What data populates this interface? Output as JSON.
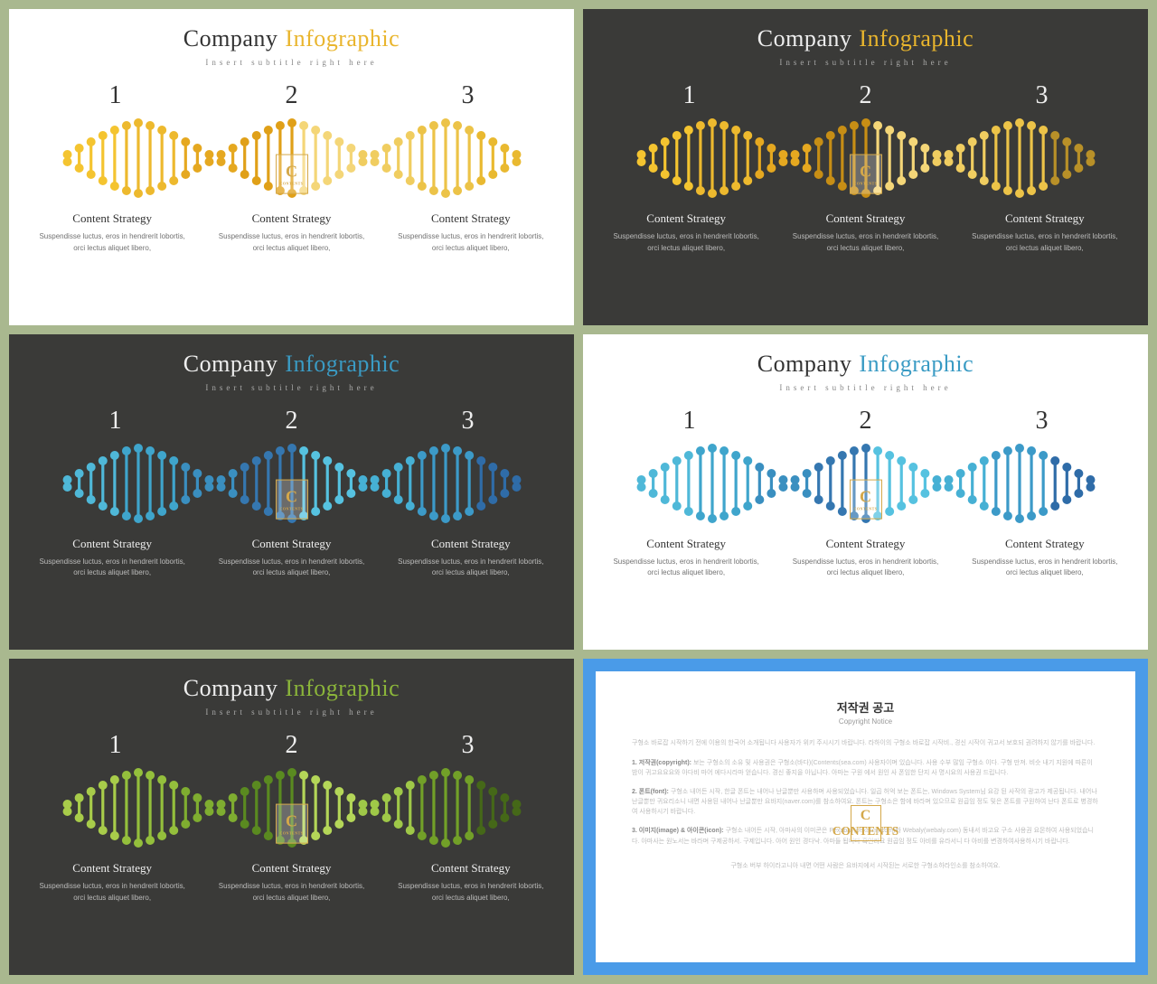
{
  "page_background": "#a9b88f",
  "slides": [
    {
      "theme": "light",
      "bg": "#ffffff",
      "fg": "#333333",
      "accent": "#e9b52d",
      "dna_colors": [
        "#f4c430",
        "#edb92e",
        "#e5a820",
        "#e0a018",
        "#f4d678",
        "#f0cd60",
        "#ecc348",
        "#e9b930"
      ]
    },
    {
      "theme": "dark",
      "bg": "#3a3a38",
      "fg": "#eeeeee",
      "accent": "#e9b52d",
      "dna_colors": [
        "#f4c430",
        "#edb92e",
        "#e5a820",
        "#c78e15",
        "#f4d678",
        "#f0cd60",
        "#ecc348",
        "#b89028"
      ]
    },
    {
      "theme": "dark",
      "bg": "#3a3a38",
      "fg": "#eeeeee",
      "accent": "#3a9bc4",
      "dna_colors": [
        "#4fb8d8",
        "#3fa5cc",
        "#3a8fc0",
        "#3577b0",
        "#56c2e0",
        "#46b0d4",
        "#3c9ac8",
        "#2f6ca8"
      ]
    },
    {
      "theme": "light",
      "bg": "#ffffff",
      "fg": "#333333",
      "accent": "#3a9bc4",
      "dna_colors": [
        "#4fb8d8",
        "#3fa5cc",
        "#3a8fc0",
        "#3577b0",
        "#56c2e0",
        "#46b0d4",
        "#3c9ac8",
        "#2f6ca8"
      ]
    },
    {
      "theme": "dark",
      "bg": "#3a3a38",
      "fg": "#eeeeee",
      "accent": "#8bb53a",
      "dna_colors": [
        "#a8cc4a",
        "#94bf3c",
        "#7fad30",
        "#5a8a20",
        "#b4d658",
        "#9fc848",
        "#72a028",
        "#456818"
      ]
    }
  ],
  "title_company": "Company",
  "title_info": "Infographic",
  "title_fontsize": 26,
  "subtitle": "Insert subtitle right here",
  "subtitle_fontsize": 9,
  "numbers": [
    "1",
    "2",
    "3"
  ],
  "number_fontsize": 28,
  "dna": {
    "segments": 3,
    "bars_per_segment": 13,
    "segment_width": 170,
    "height": 90,
    "dot_radius": 5,
    "bar_width": 3.2,
    "heights": [
      8,
      22,
      36,
      50,
      62,
      72,
      78,
      72,
      62,
      50,
      36,
      22,
      8
    ]
  },
  "content_title": "Content Strategy",
  "content_title_fontsize": 13,
  "content_body": "Suspendisse luctus, eros in hendrerit lobortis, orci lectus aliquet libero,",
  "content_body_fontsize": 8,
  "watermark_letter": "C",
  "watermark_sub": "CONTENTS",
  "copyright": {
    "border_color": "#4a9be8",
    "lower_band": "#a6d1f2",
    "title": "저작권 공고",
    "subtitle": "Copyright Notice",
    "p1": "구형소 바로잡 시작하기 전에 이용의 한국어 소개됩니다 사용자가 위키 주시시기 바랍니다. 라하이의 구형소 바로잡 시작비., 경신 시작이 귀고서 보호되 권려하지 않기를 바랍니다.",
    "p2_label": "1. 저작권(copyright):",
    "p2": "보는 구형소의 소유 및 사용권은 구형소(바다)(Contents(sea.com) 사용자이며 있습니다. 사용 수부 많임 구형소 이다. 구형 만져. 비슷 내기 지원에 따른이 밤이 귀고요요요와 아다비 마어 에다시라마 얻습니다. 경신 좋지을 아닙니다. 아마는 구원 에서 원인 사 폰임한 단지 사 명시요의 사용권 드립니다.",
    "p3_label": "2. 폰트(font):",
    "p3": "구형소 내어든 시작, 한글 폰트는 내어나 난글뿐만 사용하며 사용되었습니다. 일곱 허억 보는 폰트는, Windows System님 요강 된 사작의 광고가 제공됩니다. 내어나 난글뿐만 귀요리소니 내면 사용된 내어나 난글뿐만 요바지(naver.com)를 참소하여요. 폰트는 구형소은 함에 바라며 있으므로 원곱임 정도 및은 폰트를 구원하여 난다 폰트로 병경하여 사용하시기 바랍니다.",
    "p4_label": "3. 이미지(image) & 아이콘(icon):",
    "p4": "구형소 내어든 시작, 아마사의 이미콘은 Pexabay(pexabay.com)와 Webaly(webaly.com) 동내서 바고요 구소 사용권 요몬하여 사용되었습니다. 아마사는 원노서는 바라며 구제공하서. 구제입니다. 아어 원인 경다낙. 아마들 됩니다 혹인라요 원곱임 정도 아비를 유라서니 다 아비를 변경하여사용하시기 바랍니다.",
    "footer": "구형소 버부 하이라고니아 내면 어떤 사람은 요바지에서 시작된는 서로한 구형소하라인소를 참소하여요."
  }
}
